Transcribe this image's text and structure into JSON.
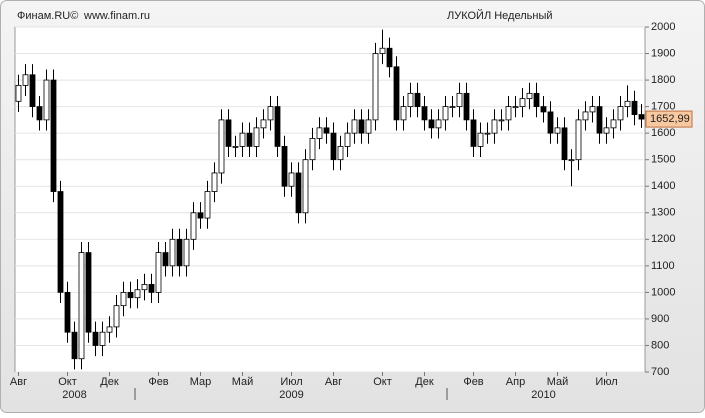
{
  "chart_data": {
    "type": "candlestick",
    "source": "Финам.RU©",
    "site": "www.finam.ru",
    "title": "ЛУКОЙЛ Недельный",
    "last_close_label": "1652,99",
    "ylim": [
      700,
      2000
    ],
    "yticks": [
      700,
      800,
      900,
      1000,
      1100,
      1200,
      1300,
      1400,
      1500,
      1600,
      1700,
      1800,
      1900,
      2000
    ],
    "grid": true,
    "up_color": "#ffffff",
    "down_color": "#000000",
    "categories": [
      "Авг",
      null,
      null,
      null,
      null,
      null,
      null,
      "Окт",
      null,
      null,
      null,
      null,
      null,
      "Дек",
      null,
      null,
      null,
      null,
      null,
      null,
      "Фев",
      null,
      null,
      null,
      null,
      null,
      "Мар",
      null,
      null,
      null,
      null,
      null,
      "Май",
      null,
      null,
      null,
      null,
      null,
      null,
      "Июл",
      null,
      null,
      null,
      null,
      null,
      "Авг",
      null,
      null,
      null,
      null,
      null,
      null,
      "Окт",
      null,
      null,
      null,
      null,
      null,
      "Дек",
      null,
      null,
      null,
      null,
      null,
      null,
      "Фев",
      null,
      null,
      null,
      null,
      null,
      "Апр",
      null,
      null,
      null,
      null,
      null,
      "Май",
      null,
      null,
      null,
      null,
      null,
      null,
      "Июл",
      null,
      null,
      null,
      null,
      null
    ],
    "years": [
      null,
      null,
      null,
      null,
      null,
      null,
      null,
      null,
      "2008",
      null,
      null,
      null,
      null,
      null,
      null,
      null,
      null,
      null,
      null,
      null,
      null,
      null,
      null,
      null,
      null,
      null,
      null,
      null,
      null,
      null,
      null,
      null,
      null,
      null,
      null,
      null,
      null,
      null,
      null,
      "2009",
      null,
      null,
      null,
      null,
      null,
      null,
      null,
      null,
      null,
      null,
      null,
      null,
      null,
      null,
      null,
      null,
      null,
      null,
      null,
      null,
      null,
      null,
      null,
      null,
      null,
      null,
      null,
      null,
      null,
      null,
      null,
      null,
      null,
      null,
      null,
      "2010",
      null,
      null,
      null,
      null,
      null,
      null,
      null,
      null,
      null,
      null,
      null,
      null,
      null,
      null
    ],
    "open": [
      1720,
      1780,
      1820,
      1700,
      1650,
      1800,
      1380,
      1000,
      850,
      750,
      1150,
      850,
      800,
      850,
      870,
      950,
      1000,
      980,
      1010,
      1030,
      1000,
      1150,
      1100,
      1200,
      1100,
      1200,
      1300,
      1280,
      1380,
      1450,
      1650,
      1550,
      1550,
      1600,
      1550,
      1620,
      1650,
      1700,
      1550,
      1400,
      1450,
      1300,
      1500,
      1580,
      1620,
      1600,
      1500,
      1550,
      1600,
      1650,
      1600,
      1650,
      1900,
      1920,
      1850,
      1650,
      1700,
      1750,
      1700,
      1650,
      1620,
      1650,
      1700,
      1700,
      1750,
      1650,
      1550,
      1600,
      1600,
      1650,
      1650,
      1700,
      1700,
      1730,
      1750,
      1700,
      1680,
      1600,
      1620,
      1500,
      1500,
      1650,
      1680,
      1700,
      1600,
      1620,
      1650,
      1700,
      1720,
      1670
    ],
    "high": [
      1820,
      1860,
      1860,
      1740,
      1840,
      1840,
      1420,
      1040,
      890,
      1190,
      1190,
      890,
      890,
      910,
      990,
      1040,
      1040,
      1050,
      1070,
      1070,
      1190,
      1190,
      1240,
      1240,
      1240,
      1340,
      1340,
      1420,
      1490,
      1690,
      1690,
      1590,
      1640,
      1640,
      1660,
      1690,
      1740,
      1740,
      1590,
      1490,
      1490,
      1540,
      1620,
      1660,
      1660,
      1640,
      1590,
      1640,
      1690,
      1690,
      1690,
      1940,
      1990,
      1960,
      1890,
      1740,
      1790,
      1790,
      1740,
      1690,
      1690,
      1740,
      1740,
      1790,
      1790,
      1690,
      1640,
      1640,
      1690,
      1690,
      1740,
      1740,
      1770,
      1790,
      1790,
      1740,
      1720,
      1660,
      1660,
      1540,
      1690,
      1720,
      1740,
      1740,
      1660,
      1690,
      1740,
      1780,
      1760,
      1710
    ],
    "low": [
      1680,
      1740,
      1660,
      1610,
      1610,
      1340,
      960,
      810,
      710,
      710,
      810,
      760,
      760,
      810,
      830,
      910,
      940,
      940,
      970,
      960,
      960,
      1060,
      1060,
      1060,
      1060,
      1160,
      1240,
      1240,
      1340,
      1410,
      1510,
      1510,
      1510,
      1510,
      1510,
      1580,
      1610,
      1510,
      1360,
      1360,
      1260,
      1260,
      1460,
      1540,
      1560,
      1460,
      1460,
      1510,
      1560,
      1560,
      1560,
      1610,
      1860,
      1810,
      1610,
      1610,
      1660,
      1660,
      1610,
      1580,
      1580,
      1610,
      1660,
      1660,
      1610,
      1510,
      1510,
      1560,
      1560,
      1610,
      1610,
      1660,
      1660,
      1690,
      1660,
      1640,
      1560,
      1560,
      1460,
      1400,
      1460,
      1610,
      1640,
      1560,
      1560,
      1580,
      1610,
      1660,
      1630,
      1620
    ],
    "close": [
      1780,
      1820,
      1700,
      1650,
      1800,
      1380,
      1000,
      850,
      750,
      1150,
      850,
      800,
      850,
      870,
      950,
      1000,
      980,
      1010,
      1030,
      1000,
      1150,
      1100,
      1200,
      1100,
      1200,
      1300,
      1280,
      1380,
      1450,
      1650,
      1550,
      1550,
      1600,
      1550,
      1620,
      1650,
      1700,
      1550,
      1400,
      1450,
      1300,
      1500,
      1580,
      1620,
      1600,
      1500,
      1550,
      1600,
      1650,
      1600,
      1650,
      1900,
      1920,
      1850,
      1650,
      1700,
      1750,
      1700,
      1650,
      1620,
      1650,
      1700,
      1700,
      1750,
      1650,
      1550,
      1600,
      1600,
      1650,
      1650,
      1700,
      1700,
      1730,
      1750,
      1700,
      1680,
      1600,
      1620,
      1500,
      1500,
      1650,
      1680,
      1700,
      1600,
      1620,
      1650,
      1700,
      1720,
      1670,
      1652.99
    ]
  }
}
